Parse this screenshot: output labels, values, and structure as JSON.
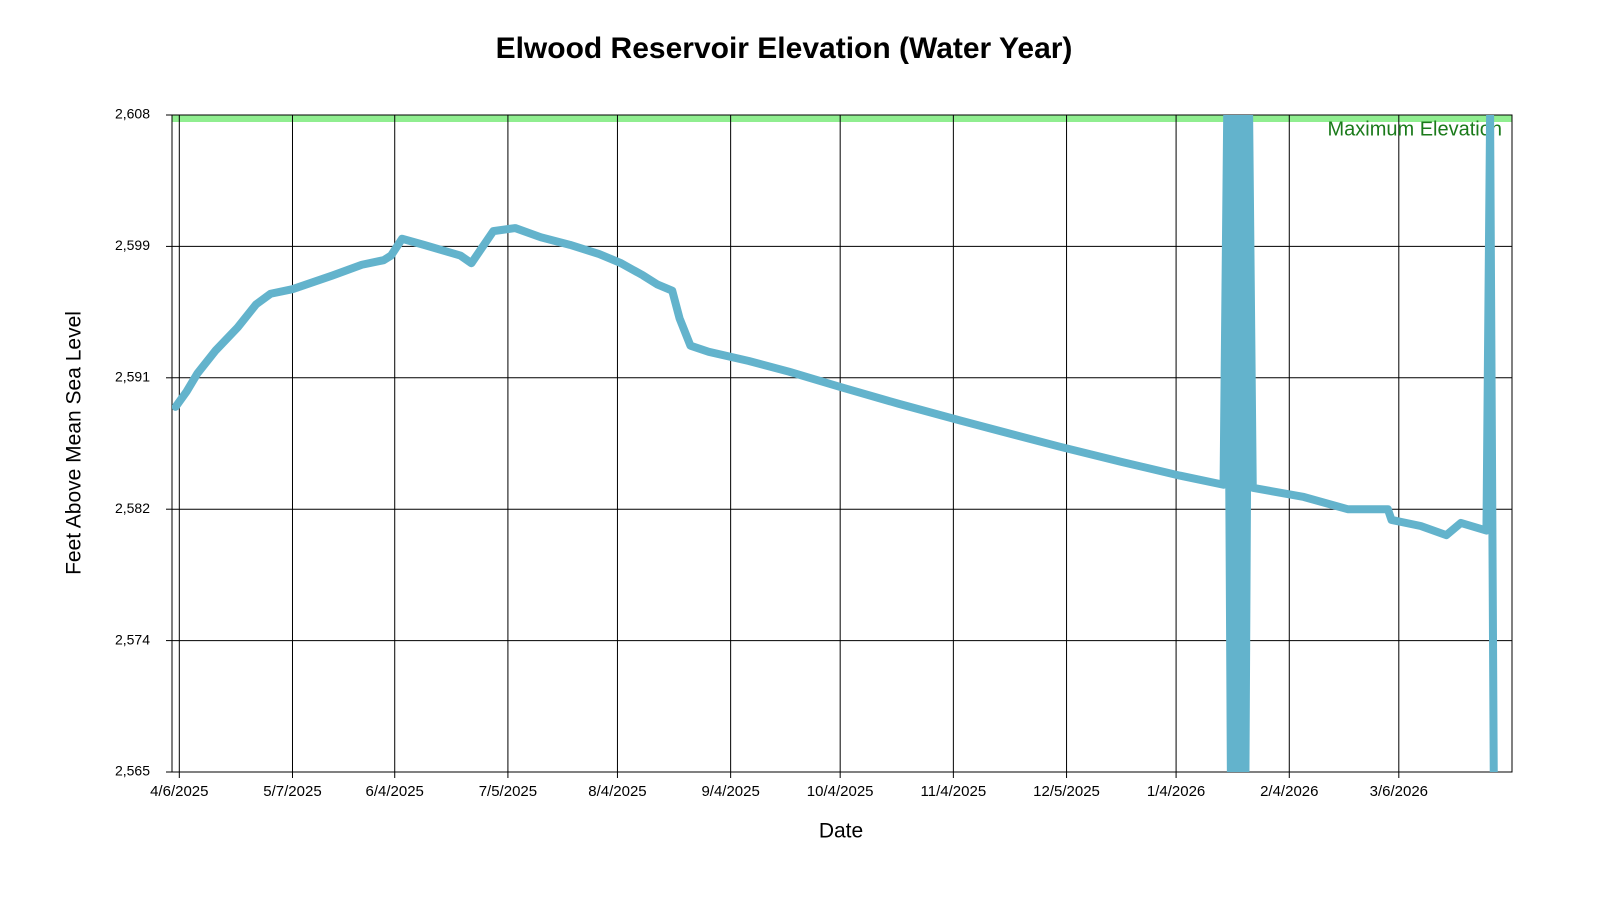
{
  "chart_data": {
    "type": "line",
    "title": "Elwood Reservoir Elevation (Water Year)",
    "x_label": "Date",
    "y_label": "Feet Above Mean Sea Level",
    "x": [
      "2025-04-05",
      "2025-04-08",
      "2025-04-11",
      "2025-04-16",
      "2025-04-22",
      "2025-04-27",
      "2025-05-01",
      "2025-05-07",
      "2025-05-18",
      "2025-05-26",
      "2025-06-01",
      "2025-06-03",
      "2025-06-06",
      "2025-06-12",
      "2025-06-22",
      "2025-06-25",
      "2025-07-01",
      "2025-07-07",
      "2025-07-14",
      "2025-07-22",
      "2025-07-30",
      "2025-08-05",
      "2025-08-11",
      "2025-08-15",
      "2025-08-19",
      "2025-08-21",
      "2025-08-24",
      "2025-08-29",
      "2025-09-09",
      "2025-09-20",
      "2025-10-04",
      "2025-10-20",
      "2025-11-06",
      "2025-11-17",
      "2025-12-03",
      "2025-12-20",
      "2026-01-05",
      "2026-01-17",
      "2026-01-18",
      "2026-01-19",
      "2026-01-20",
      "2026-01-21",
      "2026-01-22",
      "2026-01-23",
      "2026-01-24",
      "2026-01-25",
      "2026-02-08",
      "2026-02-20",
      "2026-03-03",
      "2026-03-04",
      "2026-03-12",
      "2026-03-19",
      "2026-03-23",
      "2026-03-30",
      "2026-03-31",
      "2026-04-01"
    ],
    "series": [
      {
        "name": "Elevation",
        "color": "#63b3cc",
        "values": [
          2588.9,
          2589.9,
          2591.1,
          2592.6,
          2594.1,
          2595.6,
          2596.3,
          2596.6,
          2597.5,
          2598.2,
          2598.5,
          2598.8,
          2599.9,
          2599.5,
          2598.8,
          2598.3,
          2600.4,
          2600.6,
          2600.0,
          2599.5,
          2598.9,
          2598.3,
          2597.5,
          2596.9,
          2596.5,
          2594.7,
          2592.9,
          2592.5,
          2591.9,
          2591.2,
          2590.2,
          2589.1,
          2588.0,
          2587.3,
          2586.3,
          2585.3,
          2584.4,
          2583.8,
          2608,
          2565,
          2608,
          2565,
          2608,
          2565,
          2608,
          2583.6,
          2583.0,
          2582.2,
          2582.2,
          2581.5,
          2581.1,
          2580.5,
          2581.3,
          2580.8,
          2608,
          2565
        ]
      }
    ],
    "xlim": [
      "2025-04-04",
      "2026-04-06"
    ],
    "xticks": [
      {
        "value": "2025-04-06",
        "label": "4/6/2025"
      },
      {
        "value": "2025-05-07",
        "label": "5/7/2025"
      },
      {
        "value": "2025-06-04",
        "label": "6/4/2025"
      },
      {
        "value": "2025-07-05",
        "label": "7/5/2025"
      },
      {
        "value": "2025-08-04",
        "label": "8/4/2025"
      },
      {
        "value": "2025-09-04",
        "label": "9/4/2025"
      },
      {
        "value": "2025-10-04",
        "label": "10/4/2025"
      },
      {
        "value": "2025-11-04",
        "label": "11/4/2025"
      },
      {
        "value": "2025-12-05",
        "label": "12/5/2025"
      },
      {
        "value": "2026-01-04",
        "label": "1/4/2026"
      },
      {
        "value": "2026-02-04",
        "label": "2/4/2026"
      },
      {
        "value": "2026-03-06",
        "label": "3/6/2026"
      }
    ],
    "ylim": [
      2565,
      2608
    ],
    "yticks": [
      {
        "value": 2565,
        "label": "2,565"
      },
      {
        "value": 2573.6,
        "label": "2,574"
      },
      {
        "value": 2582.2,
        "label": "2,582"
      },
      {
        "value": 2590.8,
        "label": "2,591"
      },
      {
        "value": 2599.4,
        "label": "2,599"
      },
      {
        "value": 2608,
        "label": "2,608"
      }
    ],
    "grid": true,
    "reference": {
      "value": 2608,
      "label": "Maximum Elevation",
      "color": "#90ee90",
      "label_color": "#1a7a1a"
    }
  }
}
